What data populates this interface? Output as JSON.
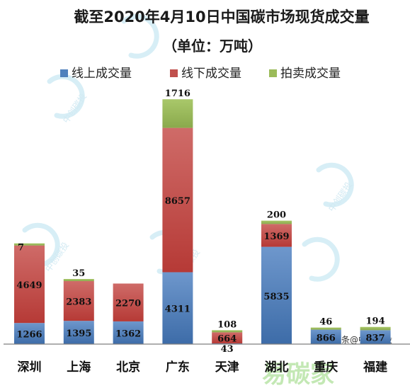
{
  "chart_data": {
    "type": "bar",
    "stacked": true,
    "title": "截至2020年4月10日中国碳市场现货成交量",
    "subtitle": "（单位：万吨）",
    "categories": [
      "深圳",
      "上海",
      "北京",
      "广东",
      "天津",
      "湖北",
      "重庆",
      "福建"
    ],
    "series": [
      {
        "name": "线上成交量",
        "color": "#4f81bd",
        "values": [
          1266,
          1395,
          1362,
          4311,
          43,
          5835,
          866,
          837
        ]
      },
      {
        "name": "线下成交量",
        "color": "#c0504d",
        "values": [
          4649,
          2383,
          2270,
          8657,
          664,
          1369,
          0,
          0
        ]
      },
      {
        "name": "拍卖成交量",
        "color": "#9bbb59",
        "values": [
          7,
          35,
          0,
          1716,
          108,
          200,
          46,
          194
        ]
      }
    ],
    "labels": [
      [
        "1266",
        "4649",
        "7"
      ],
      [
        "1395",
        "2383",
        "35"
      ],
      [
        "1362",
        "2270",
        ""
      ],
      [
        "4311",
        "8657",
        "1716"
      ],
      [
        "43",
        "664",
        "108"
      ],
      [
        "5835",
        "1369",
        "200"
      ],
      [
        "866",
        "",
        "46"
      ],
      [
        "837",
        "",
        "194"
      ]
    ],
    "legend_position": "top",
    "grid": false
  },
  "watermark": {
    "logo_text": "中创碳投",
    "bottom_text": "易碳家",
    "source_text": "头条@中创碳投"
  }
}
